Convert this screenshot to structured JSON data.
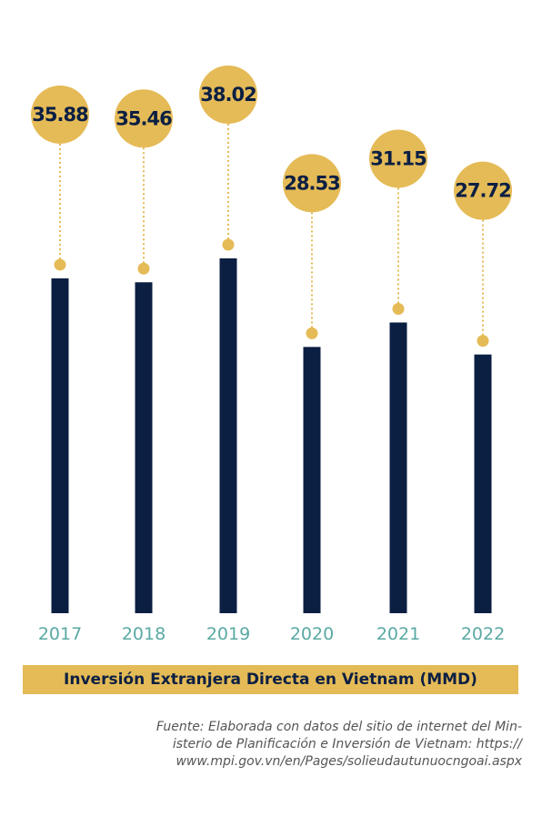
{
  "chart_data": {
    "type": "bar",
    "title": "Inversión Extranjera Directa en Vietnam (MMD)",
    "categories": [
      "2017",
      "2018",
      "2019",
      "2020",
      "2021",
      "2022"
    ],
    "values": [
      35.88,
      35.46,
      38.02,
      28.53,
      31.15,
      27.72
    ],
    "value_labels": [
      "35.88",
      "35.46",
      "38.02",
      "28.53",
      "31.15",
      "27.72"
    ],
    "ylim": [
      0,
      38.02
    ],
    "grid": false,
    "legend": "none",
    "bar_color": "#0b1f43",
    "bubble_color": "#e5bb57",
    "year_label_color": "#5aa9a3"
  },
  "source": {
    "lines": [
      "Fuente: Elaborada con datos del sitio de internet del Min-",
      "isterio de Planificación e Inversión de Vietnam: https://",
      "www.mpi.gov.vn/en/Pages/solieudautunuocngoai.aspx"
    ]
  }
}
